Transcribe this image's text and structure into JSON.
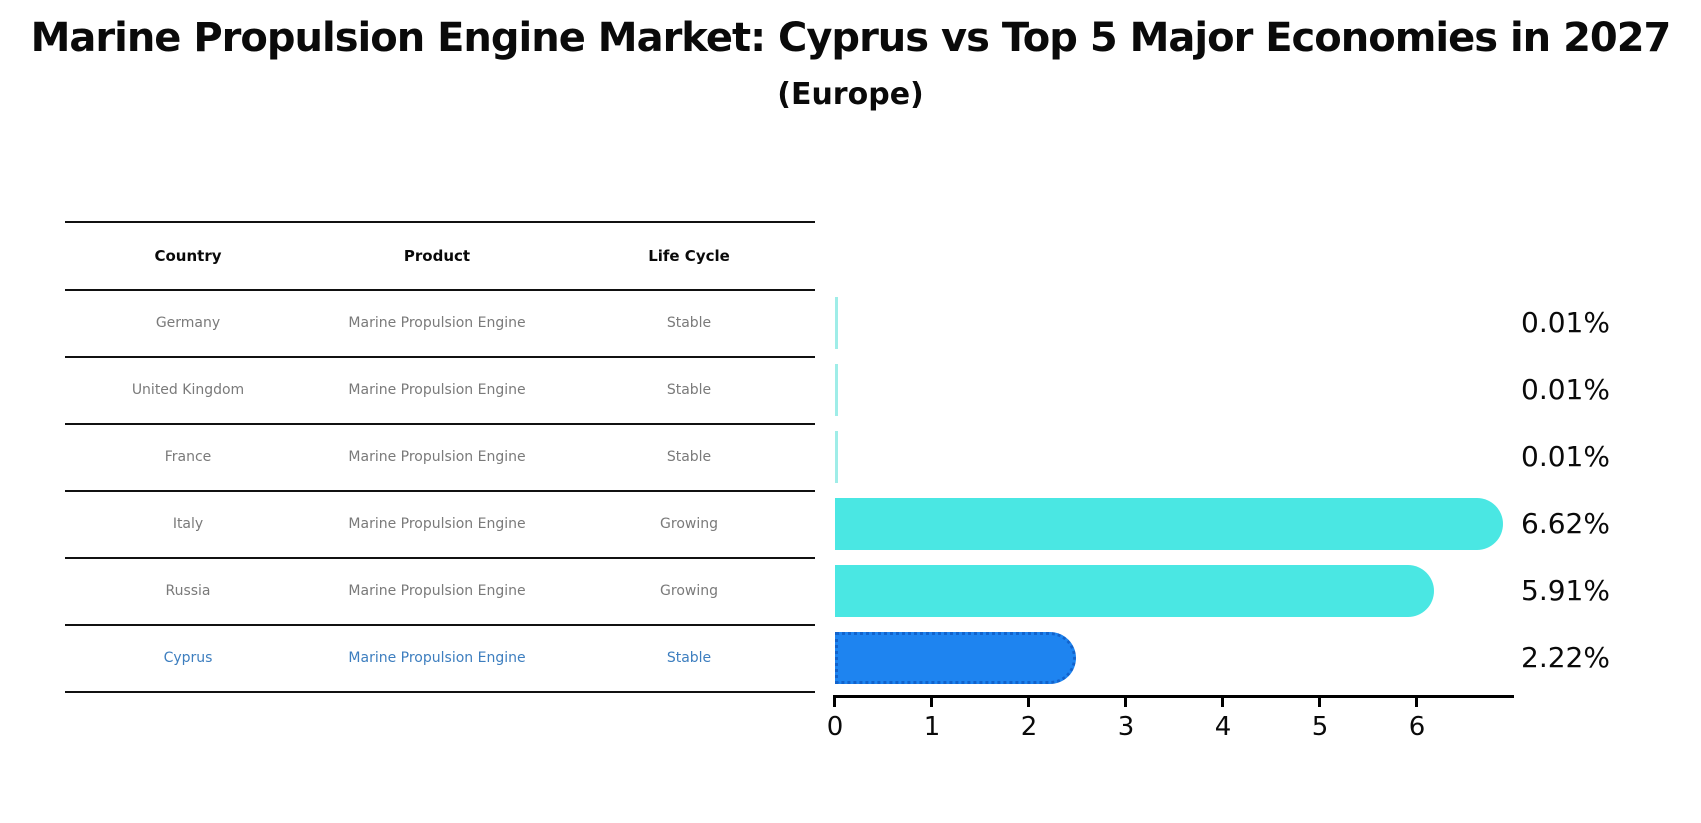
{
  "title": "Marine Propulsion Engine Market: Cyprus vs Top 5 Major Economies in 2027",
  "subtitle": "(Europe)",
  "table": {
    "headers": [
      "Country",
      "Product",
      "Life Cycle"
    ],
    "rows": [
      {
        "country": "Germany",
        "product": "Marine Propulsion Engine",
        "life_cycle": "Stable",
        "highlight": false
      },
      {
        "country": "United Kingdom",
        "product": "Marine Propulsion Engine",
        "life_cycle": "Stable",
        "highlight": false
      },
      {
        "country": "France",
        "product": "Marine Propulsion Engine",
        "life_cycle": "Stable",
        "highlight": false
      },
      {
        "country": "Italy",
        "product": "Marine Propulsion Engine",
        "life_cycle": "Growing",
        "highlight": false
      },
      {
        "country": "Russia",
        "product": "Marine Propulsion Engine",
        "life_cycle": "Growing",
        "highlight": false
      },
      {
        "country": "Cyprus",
        "product": "Marine Propulsion Engine",
        "life_cycle": "Stable",
        "highlight": true
      }
    ]
  },
  "chart_data": {
    "type": "bar",
    "orientation": "horizontal",
    "title": "Marine Propulsion Engine Market: Cyprus vs Top 5 Major Economies in 2027",
    "subtitle": "(Europe)",
    "categories": [
      "Germany",
      "United Kingdom",
      "France",
      "Italy",
      "Russia",
      "Cyprus"
    ],
    "values": [
      0.01,
      0.01,
      0.01,
      6.62,
      5.91,
      2.22
    ],
    "value_labels": [
      "0.01%",
      "0.01%",
      "0.01%",
      "6.62%",
      "5.91%",
      "2.22%"
    ],
    "xlabel": "",
    "ylabel": "",
    "xlim": [
      0,
      7
    ],
    "x_ticks": [
      0,
      1,
      2,
      3,
      4,
      5,
      6
    ],
    "grid": false,
    "legend": false,
    "highlighted_category": "Cyprus"
  },
  "colors": {
    "bar_default": "#4AE7E3",
    "bar_tiny": "#9FEDE8",
    "bar_highlight": "#1E84F0",
    "bar_highlight_border": "#1263CC",
    "highlight_text": "#3D7EBF",
    "table_text": "#7A7A7A",
    "axis": "#000000"
  }
}
